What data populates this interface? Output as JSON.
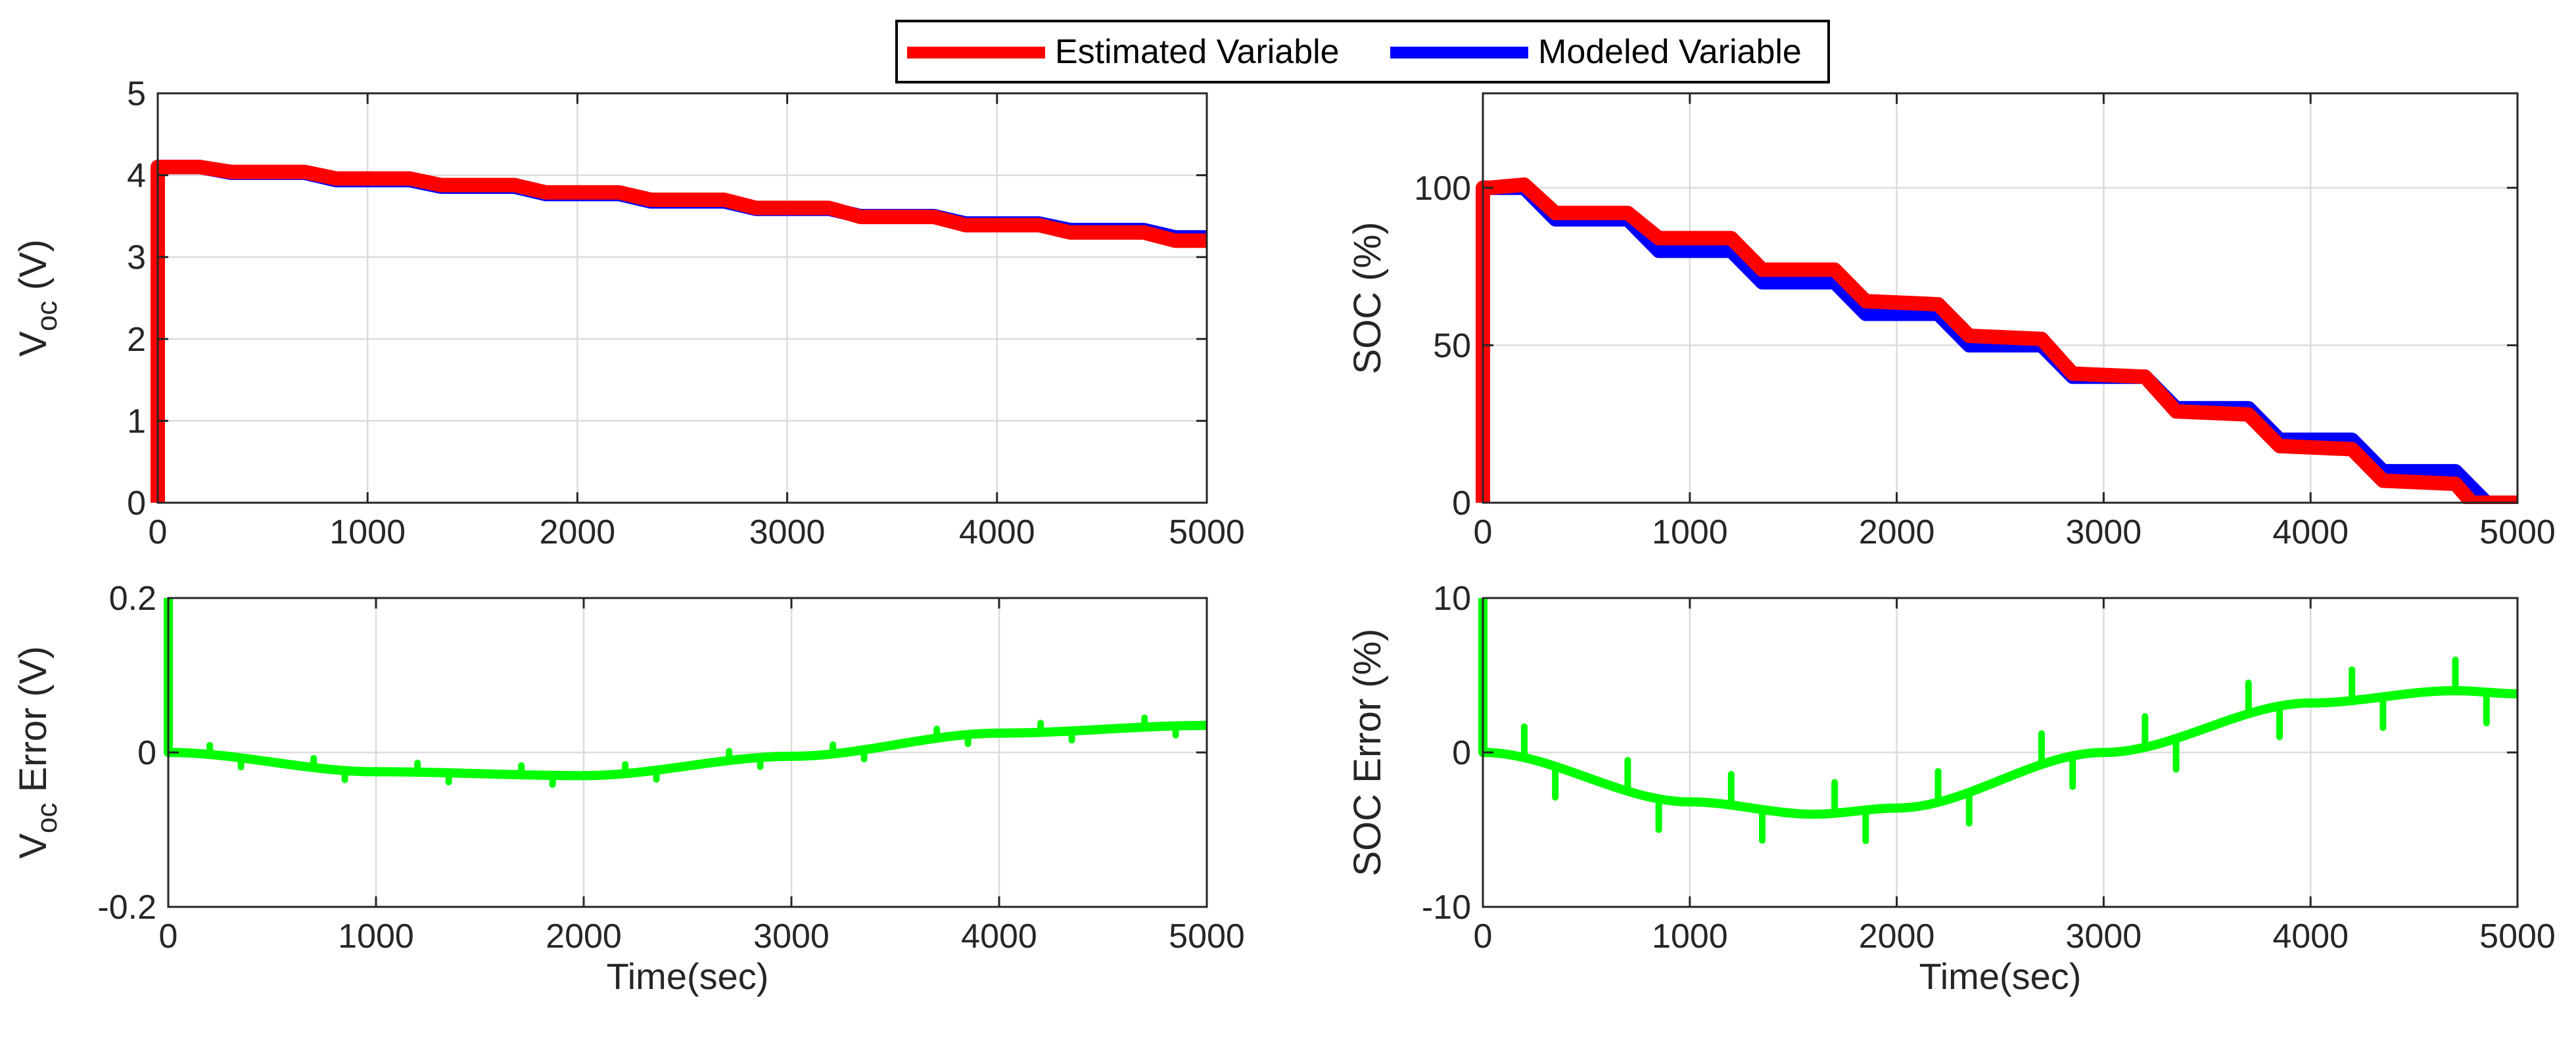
{
  "legend": {
    "items": [
      {
        "label": "Estimated Variable",
        "color": "#ff0000"
      },
      {
        "label": "Modeled Variable",
        "color": "#0000ff"
      }
    ]
  },
  "chart_data": [
    {
      "id": "voc",
      "type": "line",
      "title": "",
      "xlabel": "",
      "ylabel": "V",
      "ylabel_sub": "oc",
      "ylabel_suffix": " (V)",
      "xlim": [
        0,
        5000
      ],
      "ylim": [
        0,
        5
      ],
      "xticks": [
        0,
        1000,
        2000,
        3000,
        4000,
        5000
      ],
      "xtick_labels": [
        "0",
        "1000",
        "2000",
        "3000",
        "4000",
        "5000"
      ],
      "yticks": [
        0,
        1,
        2,
        3,
        4,
        5
      ],
      "ytick_labels": [
        "0",
        "1",
        "2",
        "3",
        "4",
        "5"
      ],
      "grid": true,
      "series": [
        {
          "name": "Modeled Variable",
          "color": "#0000ff",
          "x": [
            0,
            200,
            350,
            700,
            850,
            1200,
            1350,
            1700,
            1850,
            2200,
            2350,
            2700,
            2850,
            3200,
            3350,
            3700,
            3850,
            4200,
            4350,
            4700,
            4850,
            5000
          ],
          "y": [
            4.1,
            4.1,
            4.03,
            4.03,
            3.94,
            3.94,
            3.86,
            3.86,
            3.77,
            3.77,
            3.68,
            3.68,
            3.59,
            3.59,
            3.5,
            3.5,
            3.41,
            3.41,
            3.33,
            3.33,
            3.24,
            3.24
          ]
        },
        {
          "name": "Estimated Variable",
          "color": "#ff0000",
          "x": [
            0,
            0,
            30,
            200,
            350,
            700,
            850,
            1200,
            1350,
            1700,
            1850,
            2200,
            2350,
            2700,
            2850,
            3200,
            3350,
            3700,
            3850,
            4200,
            4350,
            4700,
            4850,
            5000
          ],
          "y": [
            0,
            4.1,
            4.1,
            4.1,
            4.04,
            4.04,
            3.96,
            3.96,
            3.88,
            3.88,
            3.79,
            3.79,
            3.7,
            3.7,
            3.6,
            3.6,
            3.49,
            3.49,
            3.39,
            3.39,
            3.3,
            3.3,
            3.2,
            3.2
          ]
        }
      ]
    },
    {
      "id": "soc",
      "type": "line",
      "title": "",
      "xlabel": "",
      "ylabel": "SOC (%)",
      "xlim": [
        0,
        5000
      ],
      "ylim": [
        0,
        130
      ],
      "xticks": [
        0,
        1000,
        2000,
        3000,
        4000,
        5000
      ],
      "xtick_labels": [
        "0",
        "1000",
        "2000",
        "3000",
        "4000",
        "5000"
      ],
      "yticks": [
        0,
        50,
        100
      ],
      "ytick_labels": [
        "0",
        "50",
        "100"
      ],
      "grid": true,
      "series": [
        {
          "name": "Modeled Variable",
          "color": "#0000ff",
          "x": [
            0,
            200,
            350,
            700,
            850,
            1200,
            1350,
            1700,
            1850,
            2200,
            2350,
            2700,
            2850,
            3200,
            3350,
            3700,
            3850,
            4200,
            4350,
            4700,
            4850,
            5000
          ],
          "y": [
            100,
            100,
            90,
            90,
            80,
            80,
            70,
            70,
            60,
            60,
            50,
            50,
            40,
            40,
            30,
            30,
            20,
            20,
            10,
            10,
            0,
            0
          ]
        },
        {
          "name": "Estimated Variable",
          "color": "#ff0000",
          "x": [
            0,
            0,
            30,
            200,
            350,
            700,
            850,
            1200,
            1350,
            1700,
            1850,
            2200,
            2350,
            2700,
            2850,
            3200,
            3350,
            3700,
            3850,
            4200,
            4350,
            4700,
            4780,
            4850,
            5000
          ],
          "y": [
            0,
            100,
            100,
            101,
            92,
            92,
            84,
            84,
            74,
            74,
            64,
            63,
            53,
            52,
            41,
            40,
            29,
            28,
            18,
            17,
            7,
            6,
            0,
            0,
            0
          ]
        }
      ]
    },
    {
      "id": "voc_error",
      "type": "line",
      "title": "",
      "xlabel": "Time(sec)",
      "ylabel": "V",
      "ylabel_sub": "oc",
      "ylabel_suffix": " Error (V)",
      "xlim": [
        0,
        5000
      ],
      "ylim": [
        -0.2,
        0.2
      ],
      "xticks": [
        0,
        1000,
        2000,
        3000,
        4000,
        5000
      ],
      "xtick_labels": [
        "0",
        "1000",
        "2000",
        "3000",
        "4000",
        "5000"
      ],
      "yticks": [
        -0.2,
        0,
        0.2
      ],
      "ytick_labels": [
        "-0.2",
        "0",
        "0.2"
      ],
      "grid": true,
      "series": [
        {
          "name": "Error",
          "color": "#00ff00",
          "x": [
            0,
            1000,
            2000,
            3000,
            4000,
            5000
          ],
          "y": [
            0.0,
            -0.025,
            -0.03,
            -0.005,
            0.025,
            0.035
          ],
          "spike_start": [
            0,
            0.2
          ],
          "spikes": [
            {
              "x": 200,
              "dy": 0.012
            },
            {
              "x": 350,
              "dy": -0.012
            },
            {
              "x": 700,
              "dy": 0.012
            },
            {
              "x": 850,
              "dy": -0.012
            },
            {
              "x": 1200,
              "dy": 0.012
            },
            {
              "x": 1350,
              "dy": -0.012
            },
            {
              "x": 1700,
              "dy": 0.012
            },
            {
              "x": 1850,
              "dy": -0.012
            },
            {
              "x": 2200,
              "dy": 0.012
            },
            {
              "x": 2350,
              "dy": -0.012
            },
            {
              "x": 2700,
              "dy": 0.012
            },
            {
              "x": 2850,
              "dy": -0.012
            },
            {
              "x": 3200,
              "dy": 0.012
            },
            {
              "x": 3350,
              "dy": -0.012
            },
            {
              "x": 3700,
              "dy": 0.012
            },
            {
              "x": 3850,
              "dy": -0.012
            },
            {
              "x": 4200,
              "dy": 0.012
            },
            {
              "x": 4350,
              "dy": -0.012
            },
            {
              "x": 4700,
              "dy": 0.012
            },
            {
              "x": 4850,
              "dy": -0.012
            }
          ]
        }
      ]
    },
    {
      "id": "soc_error",
      "type": "line",
      "title": "",
      "xlabel": "Time(sec)",
      "ylabel": "SOC Error (%)",
      "xlim": [
        0,
        5000
      ],
      "ylim": [
        -10,
        10
      ],
      "xticks": [
        0,
        1000,
        2000,
        3000,
        4000,
        5000
      ],
      "xtick_labels": [
        "0",
        "1000",
        "2000",
        "3000",
        "4000",
        "5000"
      ],
      "yticks": [
        -10,
        0,
        10
      ],
      "ytick_labels": [
        "-10",
        "0",
        "10"
      ],
      "grid": true,
      "series": [
        {
          "name": "Error",
          "color": "#00ff00",
          "x": [
            0,
            1000,
            1600,
            2000,
            3000,
            4000,
            4700,
            5000
          ],
          "y": [
            0.0,
            -3.2,
            -4.0,
            -3.6,
            0.0,
            3.2,
            4.0,
            3.8
          ],
          "spike_start": [
            0,
            10
          ],
          "spikes": [
            {
              "x": 200,
              "dy": 2.0
            },
            {
              "x": 350,
              "dy": -2.0
            },
            {
              "x": 700,
              "dy": 2.0
            },
            {
              "x": 850,
              "dy": -2.0
            },
            {
              "x": 1200,
              "dy": 2.0
            },
            {
              "x": 1350,
              "dy": -2.0
            },
            {
              "x": 1700,
              "dy": 2.0
            },
            {
              "x": 1850,
              "dy": -2.0
            },
            {
              "x": 2200,
              "dy": 2.0
            },
            {
              "x": 2350,
              "dy": -2.0
            },
            {
              "x": 2700,
              "dy": 2.0
            },
            {
              "x": 2850,
              "dy": -2.0
            },
            {
              "x": 3200,
              "dy": 2.0
            },
            {
              "x": 3350,
              "dy": -2.0
            },
            {
              "x": 3700,
              "dy": 2.0
            },
            {
              "x": 3850,
              "dy": -2.0
            },
            {
              "x": 4200,
              "dy": 2.0
            },
            {
              "x": 4350,
              "dy": -2.0
            },
            {
              "x": 4700,
              "dy": 2.0
            },
            {
              "x": 4850,
              "dy": -2.0
            }
          ]
        }
      ]
    }
  ]
}
